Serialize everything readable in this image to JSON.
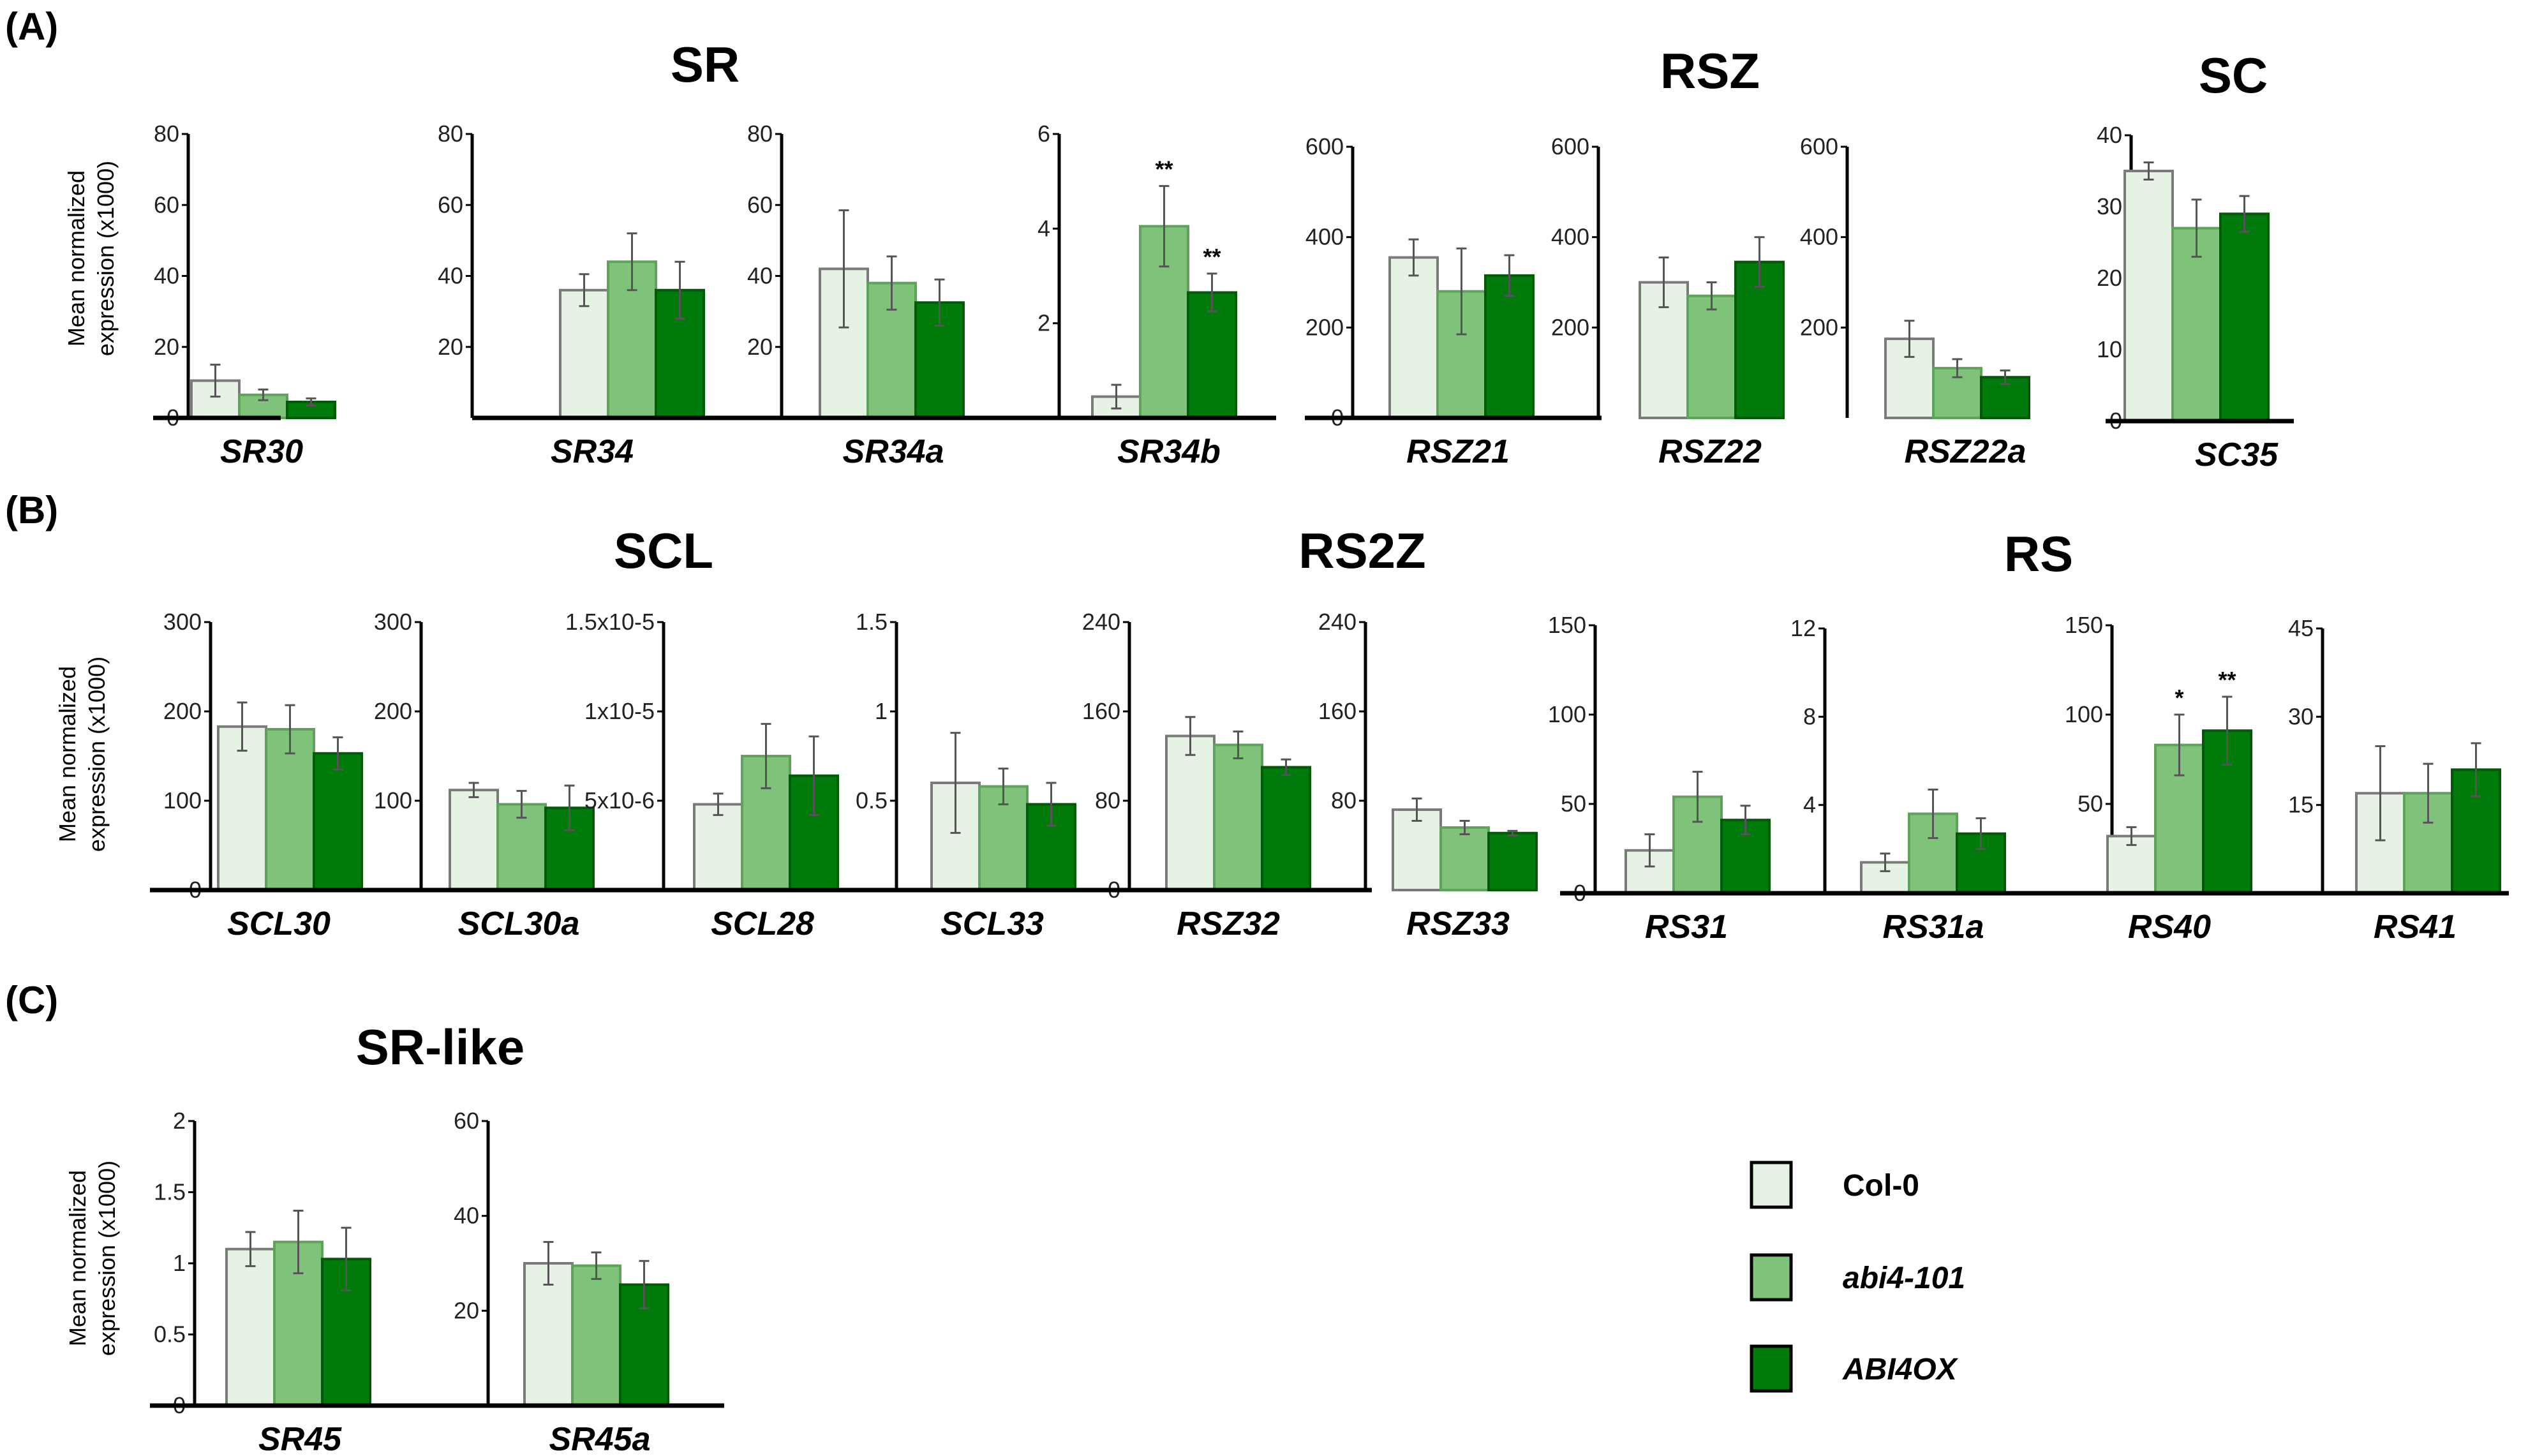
{
  "panels": [
    {
      "letter": "(A)",
      "groups": [
        {
          "title": "SR"
        },
        {
          "title": "RSZ"
        },
        {
          "title": "SC"
        }
      ]
    },
    {
      "letter": "(B)",
      "groups": [
        {
          "title": "SCL"
        },
        {
          "title": "RS2Z"
        },
        {
          "title": "RS"
        }
      ]
    },
    {
      "letter": "(C)",
      "groups": [
        {
          "title": "SR-like"
        }
      ]
    }
  ],
  "ylabel_line1": "Mean normalized",
  "ylabel_line2": "expression (x1000)",
  "legend": [
    {
      "label": "Col-0",
      "color": "#e6f2e4",
      "italic": false
    },
    {
      "label": "abi4-101",
      "color": "#7fc27a",
      "italic": true
    },
    {
      "label": "ABI4OX",
      "color": "#007a0a",
      "italic": true
    }
  ],
  "chart_data": [
    {
      "type": "bar",
      "panel": "A",
      "group": "SR",
      "category": "SR30",
      "ylim": [
        0,
        80
      ],
      "yticks": [
        "0",
        "20",
        "40",
        "60",
        "80"
      ],
      "values": [
        10.5,
        6.5,
        4.5
      ],
      "errors": [
        4.5,
        1.5,
        1.0
      ],
      "significance": [
        "",
        "",
        ""
      ]
    },
    {
      "type": "bar",
      "panel": "A",
      "group": "SR",
      "category": "SR34",
      "ylim": [
        0,
        80
      ],
      "yticks": [
        "20",
        "40",
        "60",
        "80"
      ],
      "values": [
        36,
        44,
        36
      ],
      "errors": [
        4.5,
        8,
        8
      ],
      "significance": [
        "",
        "",
        ""
      ]
    },
    {
      "type": "bar",
      "panel": "A",
      "group": "SR",
      "category": "SR34a",
      "ylim": [
        0,
        80
      ],
      "yticks": [
        "20",
        "40",
        "60",
        "80"
      ],
      "values": [
        42,
        38,
        32.5
      ],
      "errors": [
        16.5,
        7.5,
        6.5
      ],
      "significance": [
        "",
        "",
        ""
      ]
    },
    {
      "type": "bar",
      "panel": "A",
      "group": "SR",
      "category": "SR34b",
      "ylim": [
        0,
        6
      ],
      "yticks": [
        "2",
        "4",
        "6"
      ],
      "values": [
        0.45,
        4.05,
        2.65
      ],
      "errors": [
        0.25,
        0.85,
        0.4
      ],
      "significance": [
        "",
        "**",
        "**"
      ]
    },
    {
      "type": "bar",
      "panel": "A",
      "group": "RSZ",
      "category": "RSZ21",
      "ylim": [
        0,
        600
      ],
      "yticks": [
        "0",
        "200",
        "400",
        "600"
      ],
      "values": [
        355,
        280,
        315
      ],
      "errors": [
        40,
        95,
        45
      ],
      "significance": [
        "",
        "",
        ""
      ]
    },
    {
      "type": "bar",
      "panel": "A",
      "group": "RSZ",
      "category": "RSZ22",
      "ylim": [
        0,
        600
      ],
      "yticks": [
        "200",
        "400",
        "600"
      ],
      "values": [
        300,
        270,
        345
      ],
      "errors": [
        55,
        30,
        55
      ],
      "significance": [
        "",
        "",
        ""
      ]
    },
    {
      "type": "bar",
      "panel": "A",
      "group": "RSZ",
      "category": "RSZ22a",
      "ylim": [
        0,
        600
      ],
      "yticks": [
        "200",
        "400",
        "600"
      ],
      "values": [
        175,
        110,
        90
      ],
      "errors": [
        40,
        20,
        15
      ],
      "significance": [
        "",
        "",
        ""
      ]
    },
    {
      "type": "bar",
      "panel": "A",
      "group": "SC",
      "category": "SC35",
      "ylim": [
        0,
        40
      ],
      "yticks": [
        "0",
        "10",
        "20",
        "30",
        "40"
      ],
      "values": [
        35,
        27,
        29
      ],
      "errors": [
        1.2,
        4,
        2.5
      ],
      "significance": [
        "",
        "",
        ""
      ]
    },
    {
      "type": "bar",
      "panel": "B",
      "group": "SCL",
      "category": "SCL30",
      "ylim": [
        0,
        300
      ],
      "yticks": [
        "0",
        "100",
        "200",
        "300"
      ],
      "values": [
        183,
        180,
        153
      ],
      "errors": [
        27,
        27,
        18
      ],
      "significance": [
        "",
        "",
        ""
      ]
    },
    {
      "type": "bar",
      "panel": "B",
      "group": "SCL",
      "category": "SCL30a",
      "ylim": [
        0,
        300
      ],
      "yticks": [
        "100",
        "200",
        "300"
      ],
      "values": [
        112,
        96,
        92
      ],
      "errors": [
        8,
        15,
        25
      ],
      "significance": [
        "",
        "",
        ""
      ]
    },
    {
      "type": "bar",
      "panel": "B",
      "group": "SCL",
      "category": "SCL28",
      "ylim": [
        0,
        1.5e-05
      ],
      "yticks": [
        "5x10-6",
        "1x10-5",
        "1.5x10-5"
      ],
      "values": [
        4.8e-06,
        7.5e-06,
        6.4e-06
      ],
      "errors": [
        6e-07,
        1.8e-06,
        2.2e-06
      ],
      "significance": [
        "",
        "",
        ""
      ]
    },
    {
      "type": "bar",
      "panel": "B",
      "group": "SCL",
      "category": "SCL33",
      "ylim": [
        0,
        1.5
      ],
      "yticks": [
        "0.5",
        "1",
        "1.5"
      ],
      "values": [
        0.6,
        0.58,
        0.48
      ],
      "errors": [
        0.28,
        0.1,
        0.12
      ],
      "significance": [
        "",
        "",
        ""
      ]
    },
    {
      "type": "bar",
      "panel": "B",
      "group": "RS2Z",
      "category": "RSZ32",
      "ylim": [
        0,
        240
      ],
      "yticks": [
        "0",
        "80",
        "160",
        "240"
      ],
      "values": [
        138,
        130,
        110
      ],
      "errors": [
        17,
        12,
        7
      ],
      "significance": [
        "",
        "",
        ""
      ]
    },
    {
      "type": "bar",
      "panel": "B",
      "group": "RS2Z",
      "category": "RSZ33",
      "ylim": [
        0,
        240
      ],
      "yticks": [
        "80",
        "160",
        "240"
      ],
      "values": [
        72,
        56,
        51
      ],
      "errors": [
        10,
        6,
        2
      ],
      "significance": [
        "",
        "",
        ""
      ]
    },
    {
      "type": "bar",
      "panel": "B",
      "group": "RS",
      "category": "RS31",
      "ylim": [
        0,
        150
      ],
      "yticks": [
        "0",
        "50",
        "100",
        "150"
      ],
      "values": [
        24,
        54,
        41
      ],
      "errors": [
        9,
        14,
        8
      ],
      "significance": [
        "",
        "",
        ""
      ]
    },
    {
      "type": "bar",
      "panel": "B",
      "group": "RS",
      "category": "RS31a",
      "ylim": [
        0,
        12
      ],
      "yticks": [
        "4",
        "8",
        "12"
      ],
      "values": [
        1.4,
        3.6,
        2.7
      ],
      "errors": [
        0.4,
        1.1,
        0.7
      ],
      "significance": [
        "",
        "",
        ""
      ]
    },
    {
      "type": "bar",
      "panel": "B",
      "group": "RS",
      "category": "RS40",
      "ylim": [
        0,
        150
      ],
      "yticks": [
        "50",
        "100",
        "150"
      ],
      "values": [
        32,
        83,
        91
      ],
      "errors": [
        5,
        17,
        19
      ],
      "significance": [
        "",
        "*",
        "**"
      ]
    },
    {
      "type": "bar",
      "panel": "B",
      "group": "RS",
      "category": "RS41",
      "ylim": [
        0,
        45
      ],
      "yticks": [
        "15",
        "30",
        "45"
      ],
      "values": [
        17,
        17,
        21
      ],
      "errors": [
        8,
        5,
        4.5
      ],
      "significance": [
        "",
        "",
        ""
      ]
    },
    {
      "type": "bar",
      "panel": "C",
      "group": "SR-like",
      "category": "SR45",
      "ylim": [
        0,
        2
      ],
      "yticks": [
        "0",
        "0.5",
        "1",
        "1.5",
        "2"
      ],
      "values": [
        1.1,
        1.15,
        1.03
      ],
      "errors": [
        0.12,
        0.22,
        0.22
      ],
      "significance": [
        "",
        "",
        ""
      ]
    },
    {
      "type": "bar",
      "panel": "C",
      "group": "SR-like",
      "category": "SR45a",
      "ylim": [
        0,
        60
      ],
      "yticks": [
        "20",
        "40",
        "60"
      ],
      "values": [
        30,
        29.5,
        25.5
      ],
      "errors": [
        4.5,
        2.8,
        5
      ],
      "significance": [
        "",
        "",
        ""
      ]
    }
  ]
}
